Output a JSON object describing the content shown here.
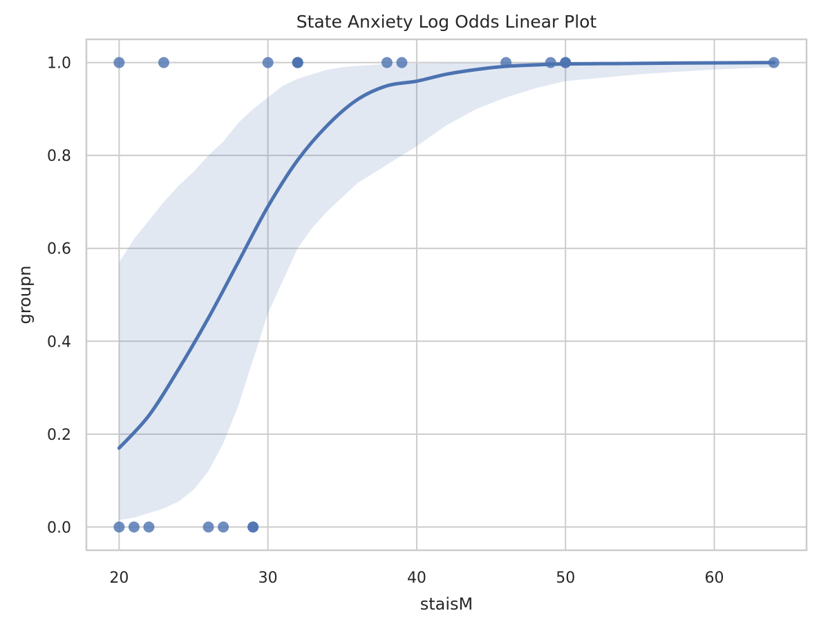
{
  "chart_data": {
    "type": "scatter",
    "title": "State Anxiety Log Odds Linear Plot",
    "xlabel": "staisM",
    "ylabel": "groupn",
    "xlim": [
      17.8,
      66.2
    ],
    "ylim": [
      -0.05,
      1.05
    ],
    "xticks": [
      20,
      30,
      40,
      50,
      60
    ],
    "yticks": [
      0.0,
      0.2,
      0.4,
      0.6,
      0.8,
      1.0
    ],
    "xtick_labels": [
      "20",
      "30",
      "40",
      "50",
      "60"
    ],
    "ytick_labels": [
      "0.0",
      "0.2",
      "0.4",
      "0.6",
      "0.8",
      "1.0"
    ],
    "grid": true,
    "colors": {
      "series": "#4c72b0",
      "ci_band": "#4c72b0",
      "grid": "#cccccc",
      "spine": "#cccccc",
      "text": "#262626"
    },
    "scatter_points": [
      {
        "x": 20,
        "y": 1
      },
      {
        "x": 23,
        "y": 1
      },
      {
        "x": 30,
        "y": 1
      },
      {
        "x": 32,
        "y": 1
      },
      {
        "x": 32,
        "y": 1
      },
      {
        "x": 32,
        "y": 1
      },
      {
        "x": 38,
        "y": 1
      },
      {
        "x": 39,
        "y": 1
      },
      {
        "x": 46,
        "y": 1
      },
      {
        "x": 49,
        "y": 1
      },
      {
        "x": 50,
        "y": 1
      },
      {
        "x": 50,
        "y": 1
      },
      {
        "x": 64,
        "y": 1
      },
      {
        "x": 20,
        "y": 0
      },
      {
        "x": 21,
        "y": 0
      },
      {
        "x": 22,
        "y": 0
      },
      {
        "x": 26,
        "y": 0
      },
      {
        "x": 27,
        "y": 0
      },
      {
        "x": 29,
        "y": 0
      },
      {
        "x": 29,
        "y": 0
      }
    ],
    "fit_line": {
      "x": [
        20,
        22,
        24,
        26,
        28,
        30,
        32,
        34,
        36,
        38,
        40,
        42,
        44,
        46,
        48,
        50,
        54,
        58,
        64
      ],
      "y": [
        0.17,
        0.24,
        0.34,
        0.45,
        0.57,
        0.69,
        0.79,
        0.865,
        0.92,
        0.95,
        0.96,
        0.975,
        0.985,
        0.992,
        0.995,
        0.997,
        0.998,
        0.999,
        1.0
      ]
    },
    "ci_band": {
      "x": [
        20,
        21,
        22,
        23,
        24,
        25,
        26,
        27,
        28,
        29,
        30,
        31,
        32,
        33,
        34,
        35,
        36,
        38,
        40,
        42,
        44,
        46,
        48,
        50,
        55,
        60,
        64
      ],
      "lower": [
        0.015,
        0.02,
        0.03,
        0.04,
        0.055,
        0.08,
        0.12,
        0.18,
        0.26,
        0.36,
        0.46,
        0.53,
        0.6,
        0.645,
        0.68,
        0.71,
        0.74,
        0.78,
        0.82,
        0.865,
        0.9,
        0.925,
        0.945,
        0.96,
        0.975,
        0.985,
        0.99
      ],
      "upper": [
        0.57,
        0.62,
        0.66,
        0.7,
        0.735,
        0.765,
        0.8,
        0.83,
        0.87,
        0.9,
        0.925,
        0.95,
        0.965,
        0.975,
        0.985,
        0.99,
        0.993,
        0.997,
        0.998,
        0.999,
        0.999,
        1.0,
        1.0,
        1.0,
        1.0,
        1.0,
        1.0
      ]
    }
  }
}
